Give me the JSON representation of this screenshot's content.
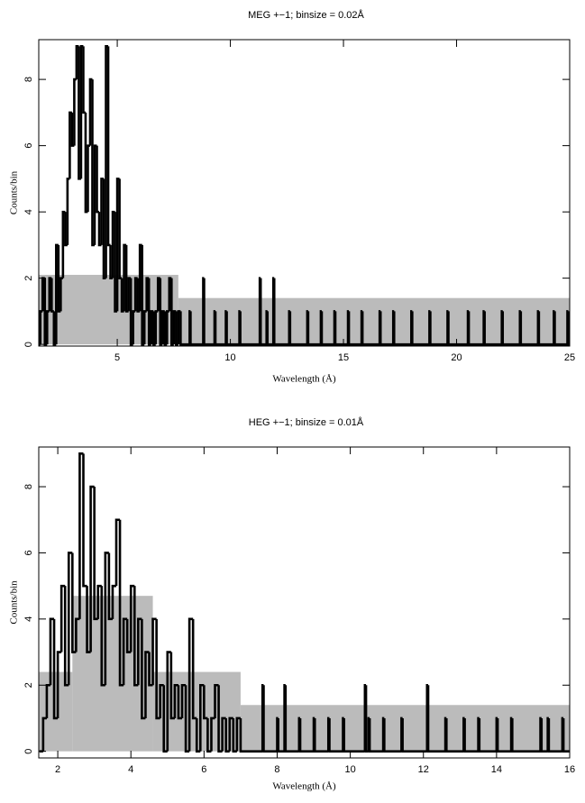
{
  "chart_data": [
    {
      "type": "step",
      "title": "MEG +−1; binsize = 0.02Å",
      "xlabel": "Wavelength (Å)",
      "ylabel": "Counts/bin",
      "xlim": [
        1.53,
        25
      ],
      "ylim": [
        -0.05,
        9.2
      ],
      "xticks": [
        5,
        10,
        15,
        20,
        25
      ],
      "yticks": [
        0,
        2,
        4,
        6,
        8
      ],
      "series": [
        {
          "kind": "band",
          "color": "#bbbbbb",
          "x": [
            1.53,
            7.7
          ],
          "values": [
            2.1,
            1.4
          ]
        },
        {
          "kind": "line",
          "color": "#000000",
          "x": [
            1.5,
            1.6,
            1.7,
            1.8,
            1.9,
            2.0,
            2.1,
            2.2,
            2.3,
            2.4,
            2.5,
            2.6,
            2.7,
            2.8,
            2.9,
            3.0,
            3.1,
            3.2,
            3.3,
            3.4,
            3.5,
            3.6,
            3.7,
            3.8,
            3.9,
            4.0,
            4.1,
            4.2,
            4.3,
            4.4,
            4.5,
            4.6,
            4.7,
            4.8,
            4.9,
            5.0,
            5.1,
            5.2,
            5.3,
            5.4,
            5.5,
            5.6,
            5.7,
            5.8,
            5.9,
            6.0,
            6.1,
            6.2,
            6.3,
            6.4,
            6.5,
            6.6,
            6.7,
            6.8,
            6.9,
            7.0,
            7.1,
            7.2,
            7.3,
            7.4,
            7.5,
            7.6,
            7.7,
            7.8,
            8.2,
            8.24,
            8.8,
            8.84,
            9.3,
            9.34,
            9.8,
            9.84,
            10.4,
            10.44,
            11.3,
            11.34,
            11.6,
            11.64,
            11.9,
            11.94,
            12.6,
            12.64,
            13.4,
            13.44,
            14.0,
            14.04,
            14.6,
            14.64,
            15.2,
            15.24,
            15.8,
            15.84,
            16.6,
            16.64,
            17.2,
            17.24,
            18.0,
            18.04,
            18.8,
            18.84,
            19.6,
            19.64,
            20.5,
            20.54,
            21.2,
            21.24,
            22.0,
            22.04,
            22.8,
            22.84,
            23.6,
            23.64,
            24.3,
            24.34,
            24.9,
            24.94
          ],
          "values": [
            0,
            1,
            2,
            0,
            1,
            2,
            1,
            0,
            3,
            1,
            2,
            4,
            3,
            5,
            7,
            6,
            8,
            9,
            5,
            9,
            7,
            4,
            6,
            8,
            3,
            6,
            4,
            3,
            5,
            2,
            9,
            3,
            2,
            4,
            1,
            5,
            2,
            1,
            3,
            1,
            2,
            0,
            1,
            2,
            1,
            3,
            0,
            1,
            2,
            0,
            1,
            0,
            1,
            2,
            0,
            1,
            0,
            1,
            2,
            0,
            1,
            0,
            1,
            0,
            1,
            0,
            2,
            0,
            1,
            0,
            1,
            0,
            1,
            0,
            2,
            0,
            1,
            0,
            2,
            0,
            1,
            0,
            1,
            0,
            1,
            0,
            1,
            0,
            1,
            0,
            1,
            0,
            1,
            0,
            1,
            0,
            1,
            0,
            1,
            0,
            1,
            0,
            1,
            0,
            1,
            0,
            1,
            0,
            1,
            0,
            1,
            0,
            1,
            0,
            1,
            0
          ]
        }
      ]
    },
    {
      "type": "step",
      "title": "HEG +−1; binsize = 0.01Å",
      "xlabel": "Wavelength (Å)",
      "ylabel": "Counts/bin",
      "xlim": [
        1.48,
        16
      ],
      "ylim": [
        -0.2,
        9.2
      ],
      "xticks": [
        2,
        4,
        6,
        8,
        10,
        12,
        14,
        16
      ],
      "yticks": [
        0,
        2,
        4,
        6,
        8
      ],
      "series": [
        {
          "kind": "band",
          "color": "#bbbbbb",
          "x": [
            1.48,
            2.4,
            4.6,
            7.0
          ],
          "values": [
            2.4,
            4.7,
            2.4,
            1.4
          ]
        },
        {
          "kind": "line",
          "color": "#000000",
          "x": [
            1.5,
            1.6,
            1.7,
            1.8,
            1.9,
            2.0,
            2.1,
            2.2,
            2.3,
            2.4,
            2.5,
            2.6,
            2.7,
            2.8,
            2.9,
            3.0,
            3.1,
            3.2,
            3.3,
            3.4,
            3.5,
            3.6,
            3.7,
            3.8,
            3.9,
            4.0,
            4.1,
            4.2,
            4.3,
            4.4,
            4.5,
            4.6,
            4.7,
            4.8,
            4.9,
            5.0,
            5.1,
            5.2,
            5.3,
            5.4,
            5.5,
            5.6,
            5.7,
            5.8,
            5.9,
            6.0,
            6.1,
            6.2,
            6.3,
            6.4,
            6.5,
            6.6,
            6.7,
            6.8,
            6.9,
            7.0,
            7.6,
            7.63,
            8.0,
            8.03,
            8.2,
            8.23,
            8.6,
            8.63,
            9.0,
            9.03,
            9.4,
            9.43,
            9.8,
            9.83,
            10.4,
            10.43,
            10.5,
            10.53,
            10.9,
            10.93,
            11.4,
            11.43,
            12.1,
            12.13,
            12.6,
            12.63,
            13.1,
            13.13,
            13.5,
            13.53,
            14.0,
            14.03,
            14.4,
            14.43,
            15.2,
            15.23,
            15.4,
            15.43,
            15.8,
            15.83
          ],
          "values": [
            0,
            1,
            2,
            4,
            1,
            3,
            5,
            2,
            6,
            3,
            4,
            9,
            5,
            3,
            8,
            4,
            5,
            2,
            6,
            4,
            5,
            7,
            2,
            4,
            3,
            5,
            2,
            4,
            1,
            3,
            2,
            4,
            1,
            2,
            0,
            3,
            1,
            2,
            1,
            2,
            0,
            4,
            1,
            0,
            2,
            1,
            0,
            1,
            2,
            0,
            1,
            0,
            1,
            0,
            1,
            0,
            2,
            0,
            1,
            0,
            2,
            0,
            1,
            0,
            1,
            0,
            1,
            0,
            1,
            0,
            2,
            0,
            1,
            0,
            1,
            0,
            1,
            0,
            2,
            0,
            1,
            0,
            1,
            0,
            1,
            0,
            1,
            0,
            1,
            0,
            1,
            0,
            1,
            0,
            1,
            0
          ]
        }
      ]
    }
  ]
}
